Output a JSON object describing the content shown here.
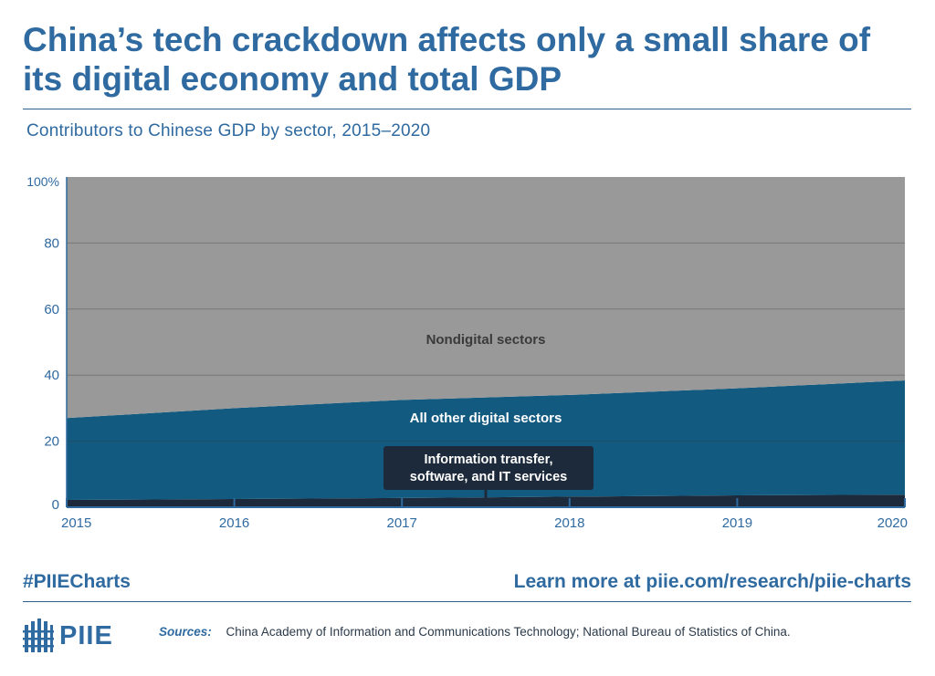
{
  "title": "China’s tech crackdown affects only a small share of its digital economy and total GDP",
  "subtitle": "Contributors to Chinese GDP by sector, 2015–2020",
  "footer": {
    "hashtag": "#PIIECharts",
    "learn_more": "Learn more at piie.com/research/piie-charts",
    "logo_text": "PIIE",
    "sources_label": "Sources:",
    "sources_text": "China Academy of Information and Communications Technology; National Bureau of Statistics of China."
  },
  "colors": {
    "nondigital": "#999999",
    "other_digital": "#135a80",
    "info_transfer": "#1c2a3b",
    "accent": "#2f6aa0",
    "callout": "#1c2a3b"
  },
  "chart_data": {
    "type": "area",
    "stacked": true,
    "x": [
      2015,
      2016,
      2017,
      2018,
      2019,
      2020
    ],
    "x_tick_labels": [
      "2015",
      "2016",
      "2017",
      "2018",
      "2019",
      "2020"
    ],
    "y_ticks": [
      0,
      20,
      40,
      60,
      80,
      100
    ],
    "y_tick_labels": [
      "0",
      "20",
      "40",
      "60",
      "80",
      "100%"
    ],
    "ylim": [
      0,
      100
    ],
    "grid": true,
    "series": [
      {
        "name": "Information transfer, software, and IT services",
        "values": [
          2.2,
          2.5,
          2.8,
          3.2,
          3.6,
          3.8
        ]
      },
      {
        "name": "All other digital sectors",
        "values": [
          24.8,
          27.5,
          29.7,
          30.8,
          32.4,
          34.6
        ]
      },
      {
        "name": "Nondigital sectors",
        "values": [
          73.0,
          70.0,
          67.5,
          66.0,
          64.0,
          61.6
        ]
      }
    ],
    "labels": {
      "nondigital": "Nondigital sectors",
      "other_digital": "All other digital sectors",
      "info_line1": "Information transfer,",
      "info_line2": "software, and IT services"
    }
  }
}
